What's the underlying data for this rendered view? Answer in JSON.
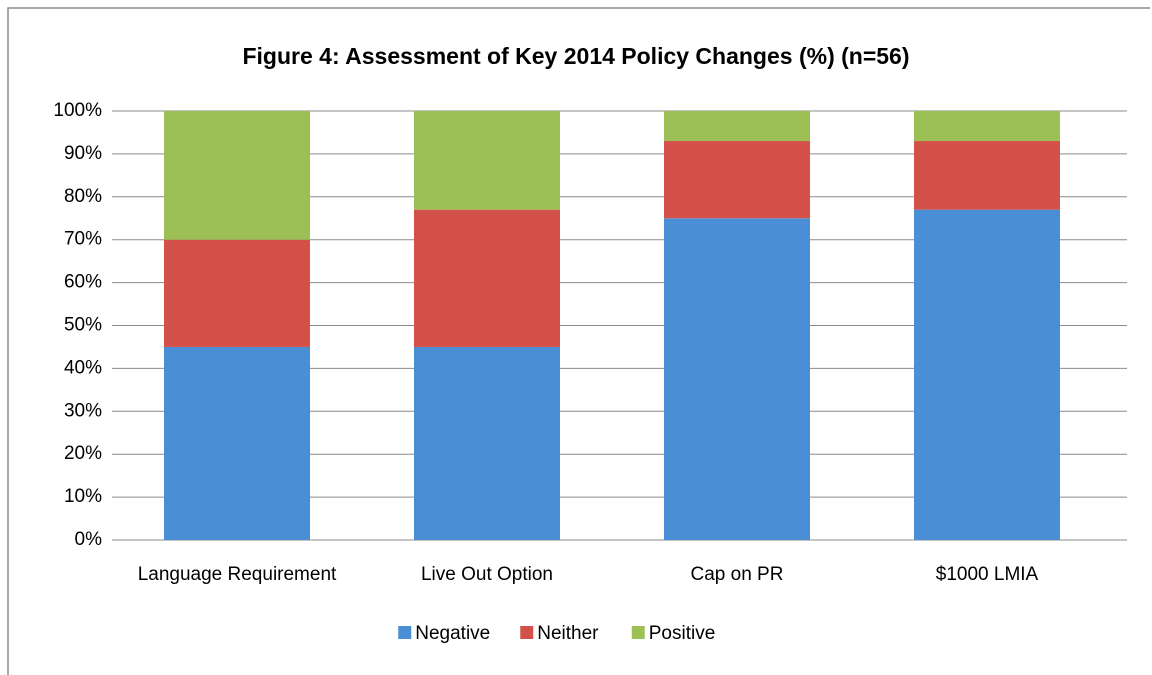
{
  "chart_data": {
    "type": "stacked_bar",
    "title": "Figure 4: Assessment of Key 2014 Policy Changes (%) (n=56)",
    "categories": [
      "Language Requirement",
      "Live Out Option",
      "Cap on PR",
      "$1000 LMIA"
    ],
    "series": [
      {
        "name": "Negative",
        "color": "#4a8fd6",
        "values": [
          45,
          45,
          75,
          77
        ]
      },
      {
        "name": "Neither",
        "color": "#d4514a",
        "values": [
          25,
          32,
          18,
          16
        ]
      },
      {
        "name": "Positive",
        "color": "#9cc055",
        "values": [
          30,
          23,
          7,
          7
        ]
      }
    ],
    "ylim": [
      0,
      100
    ],
    "yticks": [
      {
        "value": 0,
        "label": "0%"
      },
      {
        "value": 10,
        "label": "10%"
      },
      {
        "value": 20,
        "label": "20%"
      },
      {
        "value": 30,
        "label": "30%"
      },
      {
        "value": 40,
        "label": "40%"
      },
      {
        "value": 50,
        "label": "50%"
      },
      {
        "value": 60,
        "label": "60%"
      },
      {
        "value": 70,
        "label": "70%"
      },
      {
        "value": 80,
        "label": "80%"
      },
      {
        "value": 90,
        "label": "90%"
      },
      {
        "value": 100,
        "label": "100%"
      }
    ],
    "grid": true,
    "legend": "bottom"
  }
}
